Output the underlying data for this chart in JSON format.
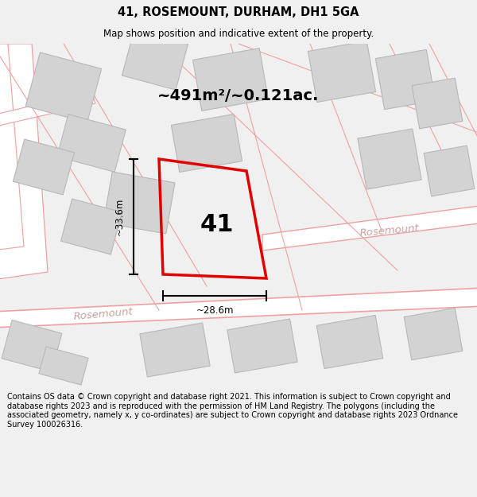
{
  "title": "41, ROSEMOUNT, DURHAM, DH1 5GA",
  "subtitle": "Map shows position and indicative extent of the property.",
  "footer": "Contains OS data © Crown copyright and database right 2021. This information is subject to Crown copyright and database rights 2023 and is reproduced with the permission of HM Land Registry. The polygons (including the associated geometry, namely x, y co-ordinates) are subject to Crown copyright and database rights 2023 Ordnance Survey 100026316.",
  "area_label": "~491m²/~0.121ac.",
  "number_label": "41",
  "width_label": "~28.6m",
  "height_label": "~33.6m",
  "bg_color": "#f0f0f0",
  "map_bg": "#ffffff",
  "road_color": "#f0a0a0",
  "road_fill": "#ffffff",
  "building_color": "#d3d3d3",
  "building_edge": "#b8b8b8",
  "plot_color": "#e00000",
  "road_label_color": "#c8a0a0",
  "title_fontsize": 10.5,
  "subtitle_fontsize": 8.5,
  "footer_fontsize": 7.0,
  "area_fontsize": 14,
  "number_fontsize": 22,
  "dim_fontsize": 8.5
}
